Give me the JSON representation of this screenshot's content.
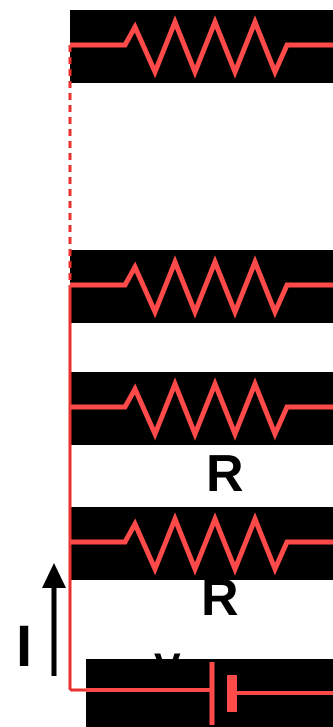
{
  "diagram": {
    "labels": {
      "resistor_r1": "R",
      "resistor_r2": "R",
      "current": "I",
      "voltage": "V"
    },
    "colors": {
      "wire": "#e8322e",
      "component": "#ff4a4a",
      "band": "#000000",
      "background": "#ffffff",
      "arrow": "#000000"
    },
    "resistor_count": 4,
    "battery_count": 1,
    "dashed_wire_segment": true
  }
}
